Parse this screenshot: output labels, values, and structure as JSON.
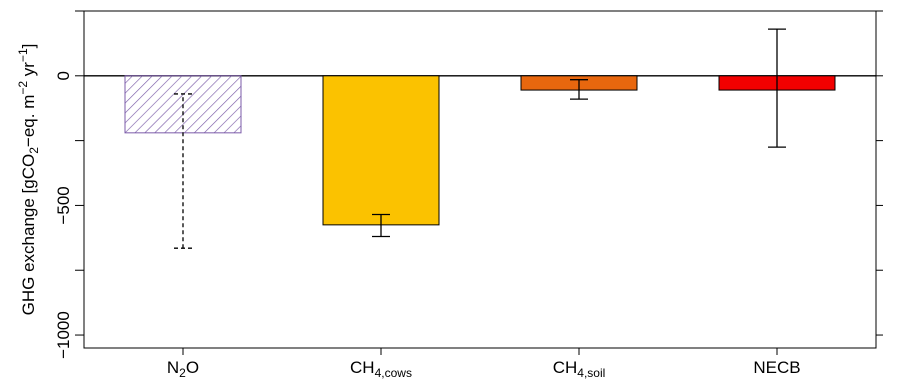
{
  "chart_data": {
    "type": "bar",
    "ylabel": "GHG exchange [gCO2−eq. m−2 yr−1]",
    "ylabel_parts": {
      "pre": "GHG exchange [gCO",
      "sub1": "2",
      "mid": "−eq. m",
      "sup1": "−2",
      "mid2": " yr",
      "sup2": "−1",
      "post": "]"
    },
    "ylim": [
      -1050,
      250
    ],
    "yticks": [
      0,
      -500,
      -1000
    ],
    "ytick_labels": [
      "0",
      "−500",
      "−1000"
    ],
    "grid": false,
    "categories": [
      {
        "base": "N",
        "sub": "2",
        "tail": "O"
      },
      {
        "base": "CH",
        "sub": "4,cows",
        "tail": ""
      },
      {
        "base": "CH",
        "sub": "4,soil",
        "tail": ""
      },
      {
        "base": "NECB",
        "sub": "",
        "tail": ""
      }
    ],
    "values": [
      -220,
      -575,
      -55,
      -55
    ],
    "error_low": [
      -665,
      -620,
      -90,
      -275
    ],
    "error_high": [
      -70,
      -535,
      -15,
      180
    ],
    "error_style": [
      "dashed",
      "solid",
      "solid",
      "solid"
    ],
    "colors": {
      "fill": [
        "hatched",
        "#FBC200",
        "#E8670E",
        "#F20000"
      ],
      "hatch": "#7B5BA8",
      "zero_line": "#000000"
    }
  }
}
